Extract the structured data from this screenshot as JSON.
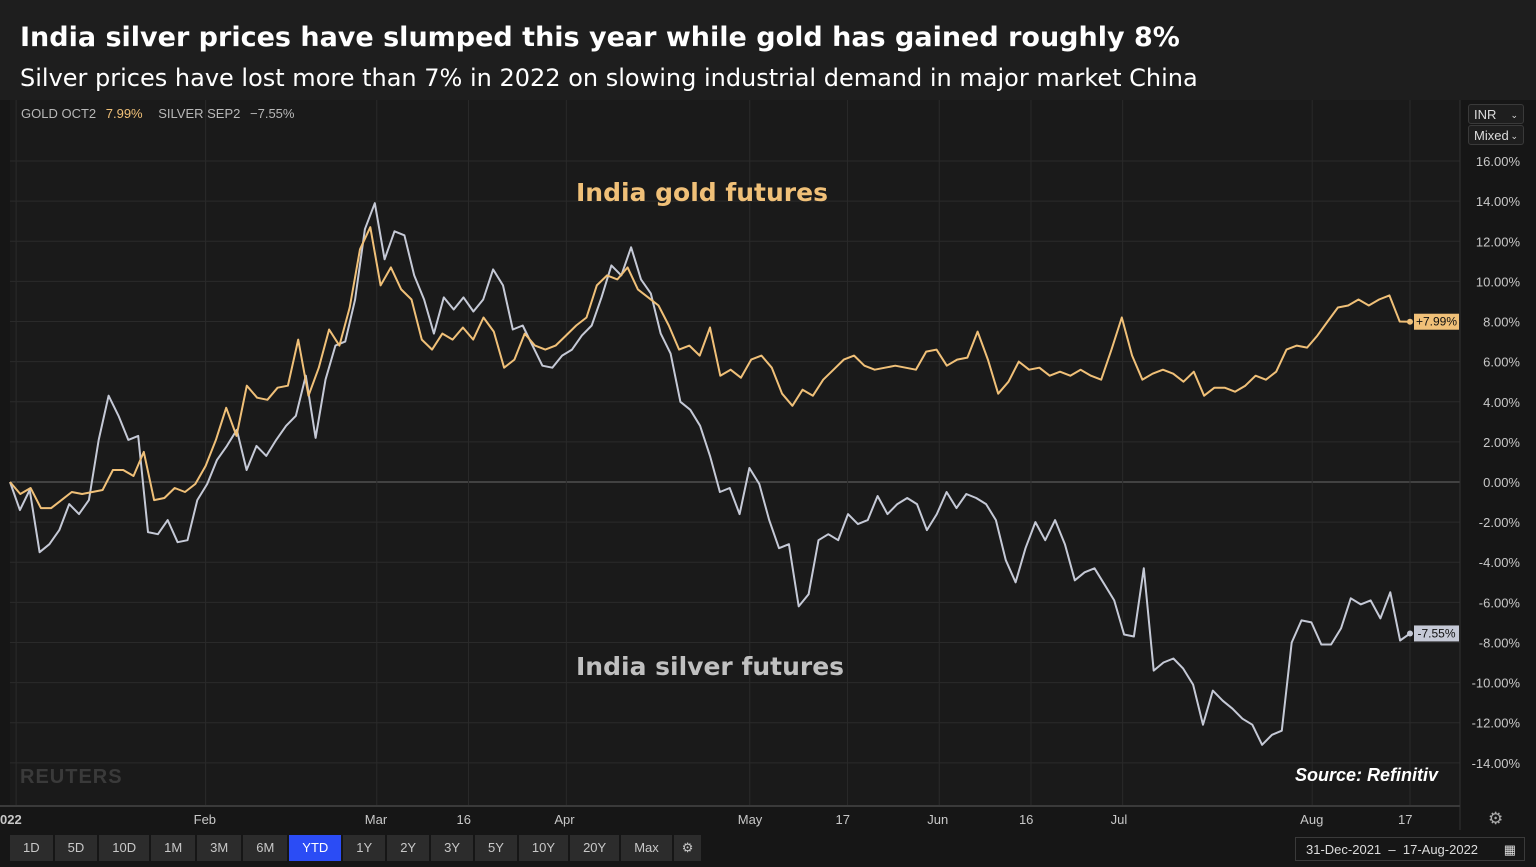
{
  "header": {
    "title": "India silver prices have slumped this year while gold has gained roughly 8%",
    "subtitle": "Silver prices have lost more than 7% in 2022 on slowing industrial demand in major market China"
  },
  "legend": {
    "gold_name": "GOLD OCT2",
    "gold_value": "7.99%",
    "silver_name": "SILVER SEP2",
    "silver_value": "−7.55%"
  },
  "controls": {
    "currency": "INR",
    "scale": "Mixed",
    "ranges": [
      "1D",
      "5D",
      "10D",
      "1M",
      "3M",
      "6M",
      "YTD",
      "1Y",
      "2Y",
      "3Y",
      "5Y",
      "10Y",
      "20Y",
      "Max"
    ],
    "active_range": "YTD",
    "date_from": "31-Dec-2021",
    "date_sep": "–",
    "date_to": "17-Aug-2022",
    "settings_icon": "gear-icon",
    "calendar_icon": "calendar-icon"
  },
  "annotations": {
    "gold": "India gold futures",
    "silver": "India silver futures",
    "source": "Source: Refinitiv",
    "watermark": "REUTERS"
  },
  "chart_data": {
    "type": "line",
    "x_range": [
      "2021-12-31",
      "2022-08-17"
    ],
    "x_tick_labels": [
      "022",
      "Feb",
      "Mar",
      "16",
      "Apr",
      "May",
      "17",
      "Jun",
      "16",
      "Jul",
      "Aug",
      "17"
    ],
    "y_tick_labels": [
      "16.00%",
      "14.00%",
      "12.00%",
      "10.00%",
      "8.00%",
      "6.00%",
      "4.00%",
      "2.00%",
      "0.00%",
      "-2.00%",
      "-4.00%",
      "-6.00%",
      "-8.00%",
      "-10.00%",
      "-12.00%",
      "-14.00%"
    ],
    "ylim": [
      -16,
      16
    ],
    "yunit": "%",
    "y_axis_side": "right",
    "grid": true,
    "colors": {
      "gold": "#f0c078",
      "silver": "#c5c9d6",
      "background": "#1a1a1a",
      "grid": "#2a2a2a"
    },
    "series": [
      {
        "name": "GOLD OCT2",
        "last_label": "+7.99%",
        "color": "#f0c078",
        "values": [
          0,
          -0.6,
          -0.3,
          -1.3,
          -1.3,
          -0.9,
          -0.5,
          -0.6,
          -0.5,
          -0.4,
          0.6,
          0.6,
          0.3,
          1.5,
          -0.9,
          -0.8,
          -0.3,
          -0.5,
          -0.1,
          0.8,
          2.1,
          3.7,
          2.3,
          4.8,
          4.2,
          4.1,
          4.7,
          4.8,
          7.1,
          4.3,
          5.7,
          7.6,
          6.8,
          8.7,
          11.6,
          12.7,
          9.8,
          10.7,
          9.6,
          9.1,
          7.1,
          6.6,
          7.4,
          7.1,
          7.7,
          7.1,
          8.2,
          7.5,
          5.7,
          6.1,
          7.4,
          6.8,
          6.6,
          6.8,
          7.3,
          7.8,
          8.2,
          9.8,
          10.3,
          10.1,
          10.7,
          9.6,
          9.2,
          8.8,
          7.8,
          6.6,
          6.8,
          6.3,
          7.7,
          5.3,
          5.6,
          5.2,
          6.1,
          6.3,
          5.7,
          4.4,
          3.8,
          4.6,
          4.3,
          5.1,
          5.6,
          6.1,
          6.3,
          5.8,
          5.6,
          5.7,
          5.8,
          5.7,
          5.6,
          6.5,
          6.6,
          5.8,
          6.1,
          6.2,
          7.5,
          6.1,
          4.4,
          5.0,
          6.0,
          5.6,
          5.7,
          5.3,
          5.5,
          5.3,
          5.6,
          5.3,
          5.1,
          6.6,
          8.2,
          6.3,
          5.1,
          5.4,
          5.6,
          5.4,
          5.0,
          5.5,
          4.3,
          4.7,
          4.7,
          4.5,
          4.8,
          5.3,
          5.1,
          5.5,
          6.6,
          6.8,
          6.7,
          7.3,
          8.0,
          8.7,
          8.8,
          9.1,
          8.8,
          9.1,
          9.3,
          8.0,
          7.99
        ]
      },
      {
        "name": "SILVER SEP2",
        "last_label": "-7.55%",
        "color": "#c5c9d6",
        "values": [
          0,
          -1.4,
          -0.4,
          -3.5,
          -3.1,
          -2.4,
          -1.1,
          -1.6,
          -0.9,
          2.1,
          4.3,
          3.3,
          2.1,
          2.3,
          -2.5,
          -2.6,
          -1.9,
          -3.0,
          -2.9,
          -0.9,
          -0.1,
          1.1,
          1.8,
          2.6,
          0.6,
          1.8,
          1.3,
          2.1,
          2.8,
          3.3,
          5.3,
          2.2,
          5.1,
          6.8,
          7.0,
          9.1,
          12.6,
          13.9,
          11.1,
          12.5,
          12.3,
          10.3,
          9.1,
          7.4,
          9.2,
          8.6,
          9.2,
          8.5,
          9.1,
          10.6,
          9.8,
          7.6,
          7.8,
          6.8,
          5.8,
          5.7,
          6.3,
          6.6,
          7.3,
          7.8,
          9.2,
          10.8,
          10.3,
          11.7,
          10.1,
          9.4,
          7.4,
          6.4,
          4.0,
          3.6,
          2.8,
          1.3,
          -0.5,
          -0.3,
          -1.6,
          0.7,
          -0.1,
          -1.9,
          -3.3,
          -3.1,
          -6.2,
          -5.6,
          -2.9,
          -2.6,
          -2.9,
          -1.6,
          -2.1,
          -1.9,
          -0.7,
          -1.6,
          -1.1,
          -0.8,
          -1.1,
          -2.4,
          -1.6,
          -0.5,
          -1.3,
          -0.6,
          -0.8,
          -1.1,
          -1.9,
          -3.9,
          -5.0,
          -3.3,
          -2.0,
          -2.9,
          -1.9,
          -3.1,
          -4.9,
          -4.5,
          -4.3,
          -5.1,
          -5.9,
          -7.6,
          -7.7,
          -4.3,
          -9.4,
          -9.0,
          -8.8,
          -9.3,
          -10.1,
          -12.1,
          -10.4,
          -10.9,
          -11.3,
          -11.8,
          -12.1,
          -13.1,
          -12.6,
          -12.4,
          -8.0,
          -6.9,
          -7.0,
          -8.1,
          -8.1,
          -7.3,
          -5.8,
          -6.1,
          -5.9,
          -6.8,
          -5.5,
          -7.9,
          -7.55
        ]
      }
    ]
  }
}
